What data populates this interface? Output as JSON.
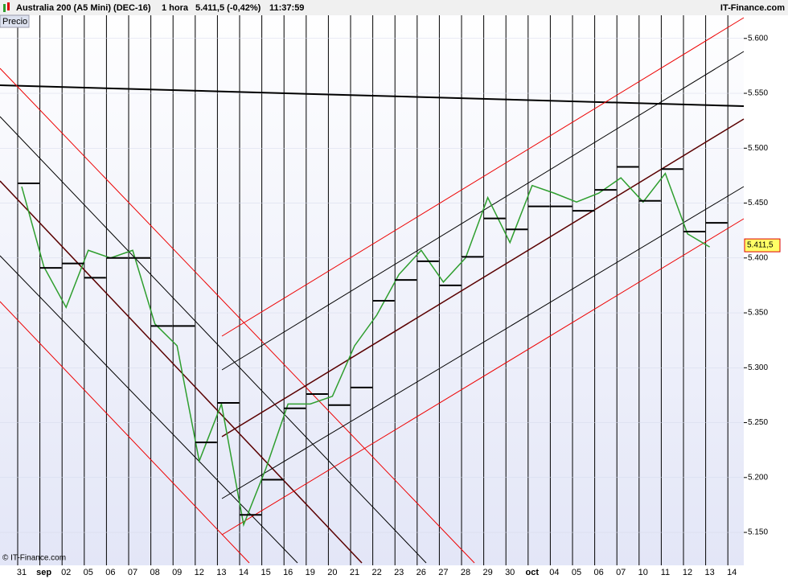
{
  "chart_data": {
    "type": "line",
    "header": {
      "instrument": "Australia 200 (A5 Mini) (DEC-16)",
      "period": "1 hora",
      "quote": "5.411,5 (-0,42%)",
      "time": "11:37:59",
      "brand": "IT-Finance.com"
    },
    "panel_label": "Precio",
    "copyright": "© IT-Finance.com",
    "last_price": {
      "value": 5.4115,
      "label": "5.411,5"
    },
    "categories": [
      "31",
      "sep",
      "02",
      "05",
      "06",
      "07",
      "08",
      "09",
      "12",
      "13",
      "14",
      "15",
      "16",
      "19",
      "20",
      "21",
      "22",
      "23",
      "26",
      "27",
      "28",
      "29",
      "30",
      "oct",
      "04",
      "05",
      "06",
      "07",
      "10",
      "11",
      "12",
      "13",
      "14"
    ],
    "series": [
      {
        "type": "line",
        "color": "#2e9e2e",
        "values": [
          5.465,
          5.392,
          5.355,
          5.407,
          5.4,
          5.407,
          5.34,
          5.32,
          5.215,
          5.267,
          5.157,
          5.208,
          5.267,
          5.267,
          5.274,
          5.32,
          5.348,
          5.385,
          5.407,
          5.378,
          5.4,
          5.455,
          5.414,
          5.466,
          5.459,
          5.451,
          5.459,
          5.473,
          5.451,
          5.477,
          5.422,
          5.41,
          null
        ]
      },
      {
        "type": "step",
        "color": "#000000",
        "values": [
          5.468,
          5.391,
          5.395,
          5.382,
          5.4,
          5.4,
          5.338,
          5.338,
          5.232,
          5.268,
          5.166,
          5.198,
          5.263,
          5.276,
          5.266,
          5.282,
          5.361,
          5.38,
          5.397,
          5.375,
          5.401,
          5.436,
          5.426,
          5.447,
          5.447,
          5.443,
          5.462,
          5.483,
          5.452,
          5.481,
          5.424,
          5.432,
          null
        ]
      }
    ],
    "ylim": [
      5.12,
      5.635
    ],
    "yticks": [
      {
        "value": 5.15,
        "label": "5.150"
      },
      {
        "value": 5.2,
        "label": "5.200"
      },
      {
        "value": 5.25,
        "label": "5.250"
      },
      {
        "value": 5.3,
        "label": "5.300"
      },
      {
        "value": 5.35,
        "label": "5.350"
      },
      {
        "value": 5.4,
        "label": "5.400"
      },
      {
        "value": 5.45,
        "label": "5.450"
      },
      {
        "value": 5.5,
        "label": "5.500"
      },
      {
        "value": 5.55,
        "label": "5.550"
      },
      {
        "value": 5.6,
        "label": "5.600"
      }
    ],
    "grid": true
  }
}
